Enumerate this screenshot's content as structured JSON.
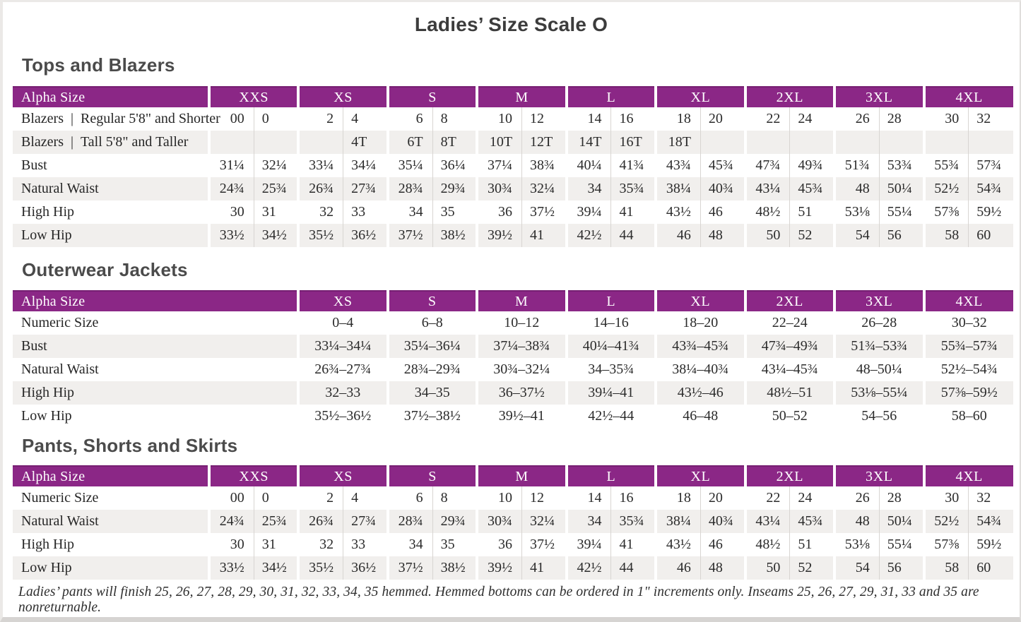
{
  "page": {
    "title": "Ladies’ Size Scale O",
    "footnote": "Ladies’ pants will finish 25, 26, 27, 28, 29, 30, 31, 32, 33, 34, 35 hemmed. Hemmed bottoms can be ordered in 1\" increments only. Inseams 25, 26, 27, 29, 31, 33 and 35 are nonreturnable."
  },
  "colors": {
    "header_purple": "#8b2786",
    "header_purple_top_edge": "#761f72",
    "row_stripe": "#f1efed",
    "sub_column_divider": "#d8d5d2",
    "heading_gray": "#4b4b4b"
  },
  "tables": [
    {
      "heading": "Tops and Blazers",
      "header_label": "Alpha Size",
      "split_columns": true,
      "sizes": [
        "XXS",
        "XS",
        "S",
        "M",
        "L",
        "XL",
        "2XL",
        "3XL",
        "4XL"
      ],
      "rows": [
        {
          "label": "Blazers | Regular 5'8\" and Shorter",
          "values": [
            [
              "00",
              "0"
            ],
            [
              "2",
              "4"
            ],
            [
              "6",
              "8"
            ],
            [
              "10",
              "12"
            ],
            [
              "14",
              "16"
            ],
            [
              "18",
              "20"
            ],
            [
              "22",
              "24"
            ],
            [
              "26",
              "28"
            ],
            [
              "30",
              "32"
            ]
          ]
        },
        {
          "label": "Blazers | Tall 5'8\" and Taller",
          "values": [
            [
              "",
              ""
            ],
            [
              "",
              "4T"
            ],
            [
              "6T",
              "8T"
            ],
            [
              "10T",
              "12T"
            ],
            [
              "14T",
              "16T"
            ],
            [
              "18T",
              ""
            ],
            [
              "",
              ""
            ],
            [
              "",
              ""
            ],
            [
              "",
              ""
            ]
          ]
        },
        {
          "label": "Bust",
          "values": [
            [
              "31¼",
              "32¼"
            ],
            [
              "33¼",
              "34¼"
            ],
            [
              "35¼",
              "36¼"
            ],
            [
              "37¼",
              "38¾"
            ],
            [
              "40¼",
              "41¾"
            ],
            [
              "43¾",
              "45¾"
            ],
            [
              "47¾",
              "49¾"
            ],
            [
              "51¾",
              "53¾"
            ],
            [
              "55¾",
              "57¾"
            ]
          ]
        },
        {
          "label": "Natural Waist",
          "values": [
            [
              "24¾",
              "25¾"
            ],
            [
              "26¾",
              "27¾"
            ],
            [
              "28¾",
              "29¾"
            ],
            [
              "30¾",
              "32¼"
            ],
            [
              "34",
              "35¾"
            ],
            [
              "38¼",
              "40¾"
            ],
            [
              "43¼",
              "45¾"
            ],
            [
              "48",
              "50¼"
            ],
            [
              "52½",
              "54¾"
            ]
          ]
        },
        {
          "label": "High Hip",
          "values": [
            [
              "30",
              "31"
            ],
            [
              "32",
              "33"
            ],
            [
              "34",
              "35"
            ],
            [
              "36",
              "37½"
            ],
            [
              "39¼",
              "41"
            ],
            [
              "43½",
              "46"
            ],
            [
              "48½",
              "51"
            ],
            [
              "53⅛",
              "55¼"
            ],
            [
              "57⅜",
              "59½"
            ]
          ]
        },
        {
          "label": "Low Hip",
          "values": [
            [
              "33½",
              "34½"
            ],
            [
              "35½",
              "36½"
            ],
            [
              "37½",
              "38½"
            ],
            [
              "39½",
              "41"
            ],
            [
              "42½",
              "44"
            ],
            [
              "46",
              "48"
            ],
            [
              "50",
              "52"
            ],
            [
              "54",
              "56"
            ],
            [
              "58",
              "60"
            ]
          ]
        }
      ]
    },
    {
      "heading": "Outerwear Jackets",
      "header_label": "Alpha Size",
      "split_columns": false,
      "sizes": [
        "XS",
        "S",
        "M",
        "L",
        "XL",
        "2XL",
        "3XL",
        "4XL"
      ],
      "rows": [
        {
          "label": "Numeric Size",
          "values": [
            "0–4",
            "6–8",
            "10–12",
            "14–16",
            "18–20",
            "22–24",
            "26–28",
            "30–32"
          ]
        },
        {
          "label": "Bust",
          "values": [
            "33¼–34¼",
            "35¼–36¼",
            "37¼–38¾",
            "40¼–41¾",
            "43¾–45¾",
            "47¾–49¾",
            "51¾–53¾",
            "55¾–57¾"
          ]
        },
        {
          "label": "Natural Waist",
          "values": [
            "26¾–27¾",
            "28¾–29¾",
            "30¾–32¼",
            "34–35¾",
            "38¼–40¾",
            "43¼–45¾",
            "48–50¼",
            "52½–54¾"
          ]
        },
        {
          "label": "High Hip",
          "values": [
            "32–33",
            "34–35",
            "36–37½",
            "39¼–41",
            "43½–46",
            "48½–51",
            "53⅛–55¼",
            "57⅜–59½"
          ]
        },
        {
          "label": "Low Hip",
          "values": [
            "35½–36½",
            "37½–38½",
            "39½–41",
            "42½–44",
            "46–48",
            "50–52",
            "54–56",
            "58–60"
          ]
        }
      ]
    },
    {
      "heading": "Pants, Shorts and Skirts",
      "header_label": "Alpha Size",
      "split_columns": true,
      "sizes": [
        "XXS",
        "XS",
        "S",
        "M",
        "L",
        "XL",
        "2XL",
        "3XL",
        "4XL"
      ],
      "rows": [
        {
          "label": "Numeric Size",
          "values": [
            [
              "00",
              "0"
            ],
            [
              "2",
              "4"
            ],
            [
              "6",
              "8"
            ],
            [
              "10",
              "12"
            ],
            [
              "14",
              "16"
            ],
            [
              "18",
              "20"
            ],
            [
              "22",
              "24"
            ],
            [
              "26",
              "28"
            ],
            [
              "30",
              "32"
            ]
          ]
        },
        {
          "label": "Natural Waist",
          "values": [
            [
              "24¾",
              "25¾"
            ],
            [
              "26¾",
              "27¾"
            ],
            [
              "28¾",
              "29¾"
            ],
            [
              "30¾",
              "32¼"
            ],
            [
              "34",
              "35¾"
            ],
            [
              "38¼",
              "40¾"
            ],
            [
              "43¼",
              "45¾"
            ],
            [
              "48",
              "50¼"
            ],
            [
              "52½",
              "54¾"
            ]
          ]
        },
        {
          "label": "High Hip",
          "values": [
            [
              "30",
              "31"
            ],
            [
              "32",
              "33"
            ],
            [
              "34",
              "35"
            ],
            [
              "36",
              "37½"
            ],
            [
              "39¼",
              "41"
            ],
            [
              "43½",
              "46"
            ],
            [
              "48½",
              "51"
            ],
            [
              "53⅛",
              "55¼"
            ],
            [
              "57⅜",
              "59½"
            ]
          ]
        },
        {
          "label": "Low Hip",
          "values": [
            [
              "33½",
              "34½"
            ],
            [
              "35½",
              "36½"
            ],
            [
              "37½",
              "38½"
            ],
            [
              "39½",
              "41"
            ],
            [
              "42½",
              "44"
            ],
            [
              "46",
              "48"
            ],
            [
              "50",
              "52"
            ],
            [
              "54",
              "56"
            ],
            [
              "58",
              "60"
            ]
          ]
        }
      ]
    }
  ]
}
